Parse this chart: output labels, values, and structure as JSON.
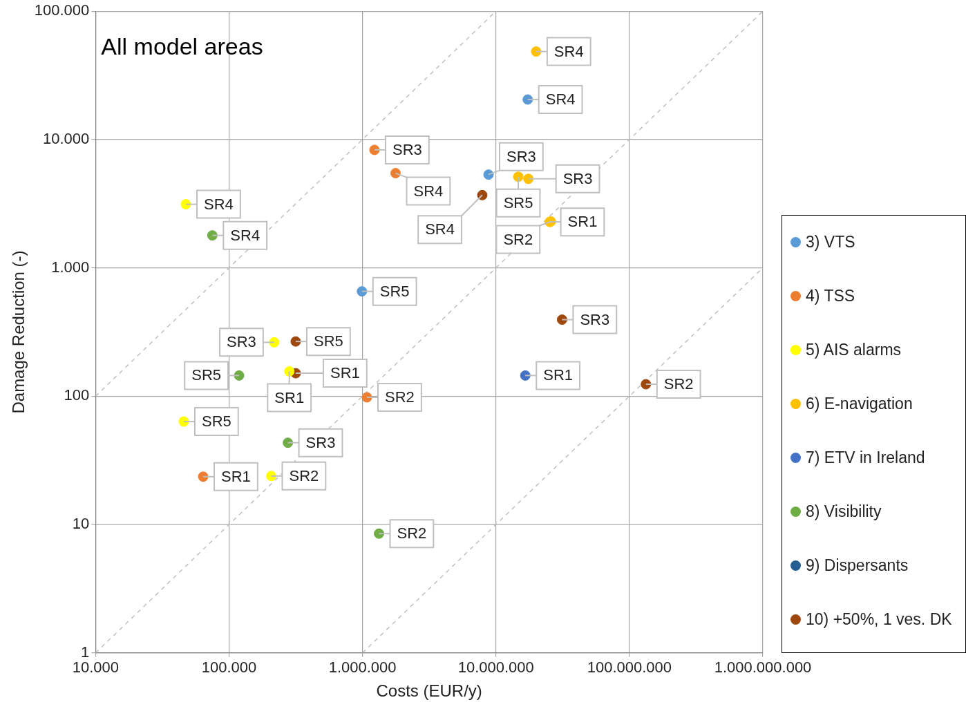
{
  "chart_data": {
    "type": "scatter",
    "title": "All model areas",
    "xlabel": "Costs (EUR/y)",
    "ylabel": "Damage Reduction (-)",
    "log": "xy",
    "grid": true,
    "legend": "right",
    "marker": "circle",
    "xlim": [
      10000,
      1000000000
    ],
    "ylim": [
      1,
      100000
    ],
    "xticks": [
      {
        "value": 10000,
        "label": "10.000"
      },
      {
        "value": 100000,
        "label": "100.000"
      },
      {
        "value": 1000000,
        "label": "1.000.000"
      },
      {
        "value": 10000000,
        "label": "10.000.000"
      },
      {
        "value": 100000000,
        "label": "100.000.000"
      },
      {
        "value": 1000000000,
        "label": "1.000.000.000"
      }
    ],
    "yticks": [
      1,
      10,
      100,
      {
        "value": 1000,
        "label": "1.000"
      },
      {
        "value": 10000,
        "label": "10.000"
      },
      {
        "value": 100000,
        "label": "100.000"
      }
    ],
    "series": [
      {
        "type": "line",
        "color": "#bfbfbf",
        "line_style": "dashed",
        "marker": "none",
        "x": [
          10000,
          10000000
        ],
        "values": [
          100,
          100000
        ]
      },
      {
        "type": "line",
        "color": "#bfbfbf",
        "line_style": "dashed",
        "marker": "none",
        "x": [
          10000,
          1000000000
        ],
        "values": [
          1,
          100000
        ]
      },
      {
        "type": "line",
        "color": "#bfbfbf",
        "line_style": "dashed",
        "marker": "none",
        "x": [
          1000000,
          1000000000
        ],
        "values": [
          1,
          1000
        ]
      },
      {
        "name": "3) VTS",
        "color": "#5b9bd5",
        "x": [
          17300000,
          8800000,
          990000
        ],
        "values": [
          20500,
          5330,
          656
        ],
        "value_labels": [
          "SR4",
          "SR3",
          "SR5"
        ]
      },
      {
        "name": "4) TSS",
        "color": "#ed7d31",
        "x": [
          1230000,
          1770000,
          1080000,
          64000
        ],
        "values": [
          8300,
          5470,
          98,
          23.6
        ],
        "value_labels": [
          "SR3",
          "SR4",
          "SR2",
          "SR1"
        ]
      },
      {
        "name": "5) AIS alarms",
        "color": "#ffff00",
        "x": [
          47500,
          218000,
          283000,
          45800,
          207000
        ],
        "values": [
          3130,
          263,
          156,
          63.5,
          23.9
        ],
        "value_labels": [
          "SR4",
          "SR3",
          "SR1",
          "SR5",
          "SR2"
        ]
      },
      {
        "name": "6) E-navigation",
        "color": "#ffc000",
        "x": [
          20000000,
          14700000,
          17500000,
          25300000,
          25800000
        ],
        "values": [
          48500,
          5130,
          4940,
          2280,
          2300
        ],
        "value_labels": [
          "SR4",
          "SR5",
          "SR3",
          "SR1",
          "SR2"
        ]
      },
      {
        "name": "7) ETV in Ireland",
        "color": "#4472c4",
        "x": [
          16600000
        ],
        "values": [
          145
        ],
        "value_labels": [
          "SR1"
        ]
      },
      {
        "name": "8) Visibility",
        "color": "#70ad47",
        "x": [
          75000,
          119000,
          276000,
          1330000
        ],
        "values": [
          1790,
          145,
          43.4,
          8.5
        ],
        "value_labels": [
          "SR4",
          "SR5",
          "SR3",
          "SR2"
        ]
      },
      {
        "name": "9) Dispersants",
        "color": "#255e91"
      },
      {
        "name": "10) +50%, 1 ves. DK",
        "color": "#9e480e",
        "x": [
          7900000,
          316000,
          316000,
          31300000,
          133000000
        ],
        "values": [
          3690,
          267,
          151,
          395,
          124
        ],
        "value_labels": [
          "SR4",
          "SR5",
          "SR1",
          "SR3",
          "SR2"
        ]
      }
    ]
  }
}
